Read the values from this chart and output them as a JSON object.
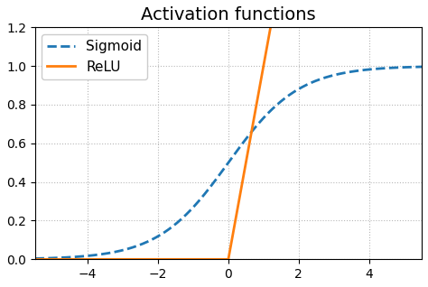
{
  "title": "Activation functions",
  "sigmoid_label": "Sigmoid",
  "relu_label": "ReLU",
  "sigmoid_color": "#1f77b4",
  "relu_color": "#ff7f0e",
  "x_min": -5.5,
  "x_max": 5.5,
  "y_min": 0.0,
  "y_max": 1.2,
  "title_fontsize": 14,
  "legend_fontsize": 11,
  "sigmoid_linewidth": 2.0,
  "relu_linewidth": 2.0,
  "grid_color": "#b0b0b0",
  "grid_linestyle": ":",
  "grid_alpha": 0.9,
  "background_color": "#ffffff",
  "xticks": [
    -4,
    -2,
    0,
    2,
    4
  ],
  "yticks": [
    0.0,
    0.2,
    0.4,
    0.6,
    0.8,
    1.0,
    1.2
  ]
}
